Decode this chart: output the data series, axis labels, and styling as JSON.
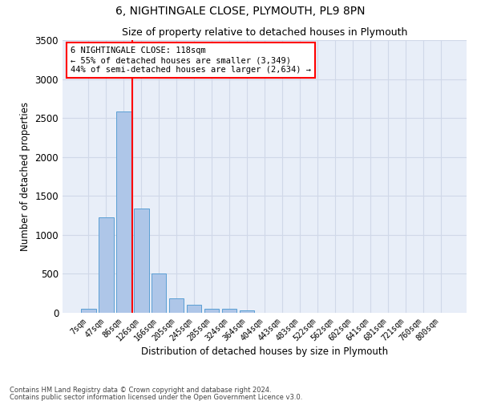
{
  "title1": "6, NIGHTINGALE CLOSE, PLYMOUTH, PL9 8PN",
  "title2": "Size of property relative to detached houses in Plymouth",
  "xlabel": "Distribution of detached houses by size in Plymouth",
  "ylabel": "Number of detached properties",
  "categories": [
    "7sqm",
    "47sqm",
    "86sqm",
    "126sqm",
    "166sqm",
    "205sqm",
    "245sqm",
    "285sqm",
    "324sqm",
    "364sqm",
    "404sqm",
    "443sqm",
    "483sqm",
    "522sqm",
    "562sqm",
    "602sqm",
    "641sqm",
    "681sqm",
    "721sqm",
    "760sqm",
    "800sqm"
  ],
  "bar_values": [
    50,
    1220,
    2580,
    1340,
    500,
    190,
    100,
    50,
    50,
    30,
    0,
    0,
    0,
    0,
    0,
    0,
    0,
    0,
    0,
    0,
    0
  ],
  "bar_color": "#aec6e8",
  "bar_edge_color": "#5a9fd4",
  "grid_color": "#d0d8e8",
  "background_color": "#e8eef8",
  "ylim": [
    0,
    3500
  ],
  "yticks": [
    0,
    500,
    1000,
    1500,
    2000,
    2500,
    3000,
    3500
  ],
  "property_label": "6 NIGHTINGALE CLOSE: 118sqm",
  "pct_smaller": "55% of detached houses are smaller (3,349)",
  "pct_larger": "44% of semi-detached houses are larger (2,634)",
  "vline_x": 2.5,
  "footer1": "Contains HM Land Registry data © Crown copyright and database right 2024.",
  "footer2": "Contains public sector information licensed under the Open Government Licence v3.0."
}
